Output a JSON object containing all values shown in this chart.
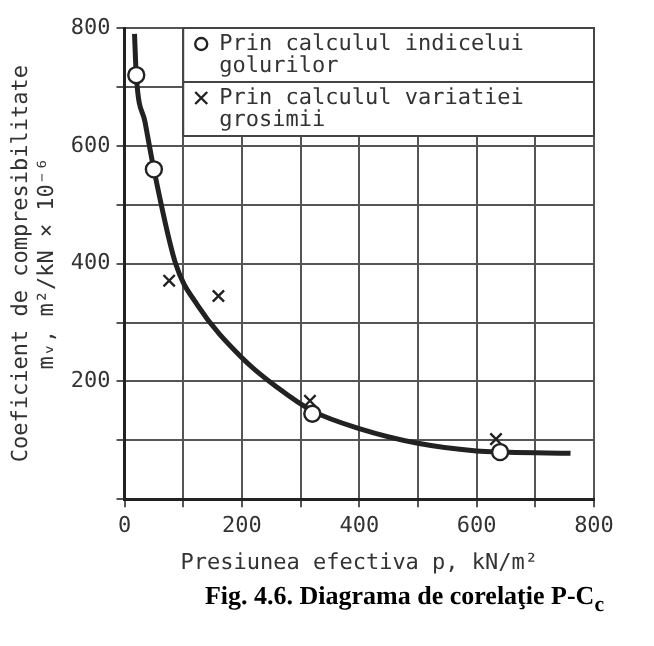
{
  "chart_data": {
    "type": "scatter",
    "xlabel": "Presiunea efectiva p, kN/m²",
    "ylabel": "Coeficient de compresibilitate\nmᵥ, m²/kN × 10⁻⁶",
    "annotations": [
      "Fig. 4.6. Diagrama de corelaţie P-C$_{c}$"
    ],
    "series": [
      {
        "type": "line",
        "color": "#222222",
        "marker": "none",
        "line_style": "solid",
        "x": [
          17,
          20,
          35,
          50,
          87,
          124,
          200,
          260,
          320,
          400,
          500,
          600,
          640,
          760
        ],
        "values": [
          790,
          720,
          640,
          560,
          400,
          330,
          240,
          190,
          150,
          120,
          95,
          82,
          80,
          78
        ]
      },
      {
        "type": "scatter",
        "name": "Prin calculul indicelui golurilor",
        "color": "#222222",
        "marker": "circle",
        "x": [
          20,
          50,
          320,
          640
        ],
        "values": [
          720,
          560,
          145,
          80
        ]
      },
      {
        "type": "scatter",
        "name": "Prin calculul variatiei grosimii",
        "color": "#222222",
        "marker": "cross",
        "x": [
          76,
          160,
          316,
          633
        ],
        "values": [
          371,
          345,
          167,
          102
        ]
      }
    ],
    "xlim": [
      0,
      800
    ],
    "ylim": [
      0,
      800
    ],
    "xticks": [
      0,
      {
        "value": 100,
        "label": null
      },
      200,
      {
        "value": 300,
        "label": null
      },
      400,
      {
        "value": 500,
        "label": null
      },
      600,
      {
        "value": 700,
        "label": null
      },
      800
    ],
    "yticks": [
      {
        "value": 0,
        "label": null
      },
      {
        "value": 100,
        "label": null
      },
      200,
      {
        "value": 300,
        "label": null
      },
      400,
      {
        "value": 500,
        "label": null
      },
      600,
      {
        "value": 700,
        "label": null
      },
      800
    ],
    "grid": true,
    "legend": "top right"
  }
}
